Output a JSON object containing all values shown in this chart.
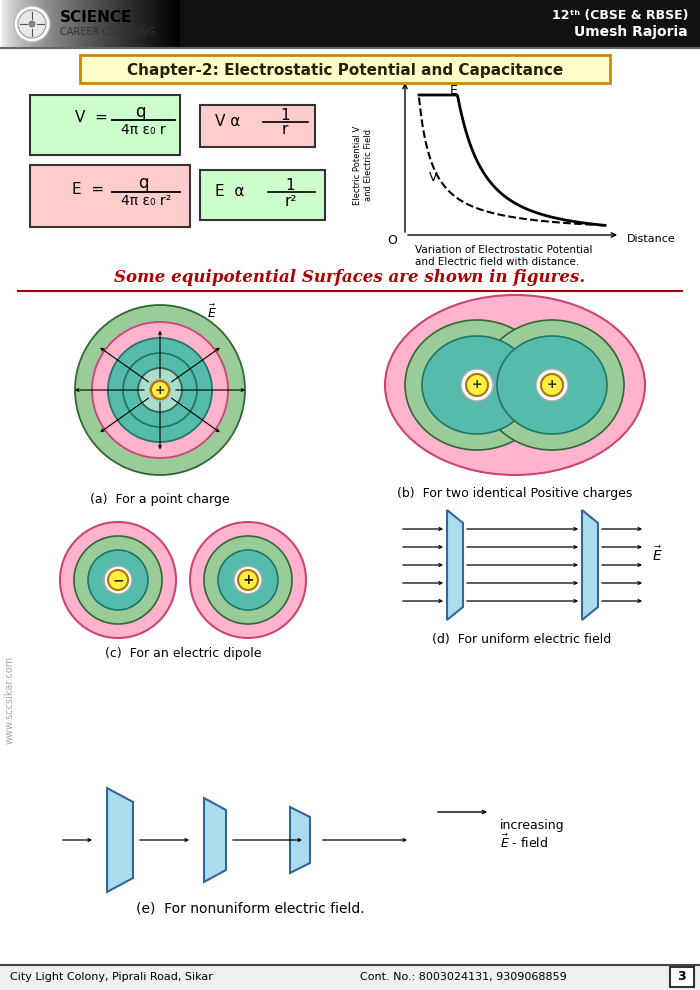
{
  "bg_color": "#ffffff",
  "chapter_title": "Chapter-2: Electrostatic Potential and Capacitance",
  "chapter_bg": "#ffffcc",
  "chapter_border": "#cc8800",
  "footer_text_left": "City Light Colony, Piprali Road, Sikar",
  "footer_text_right": "Cont. No.: 8003024131, 9309068859",
  "footer_page": "3",
  "section_title": "Some equipotential Surfaces are shown in figures.",
  "color_green_light": "#aaddaa",
  "color_pink_light": "#ffb3cc",
  "color_teal": "#66ccbb",
  "color_yellow": "#ffee44",
  "color_plate": "#aaddee",
  "watermark": "www.sccsikar.com"
}
